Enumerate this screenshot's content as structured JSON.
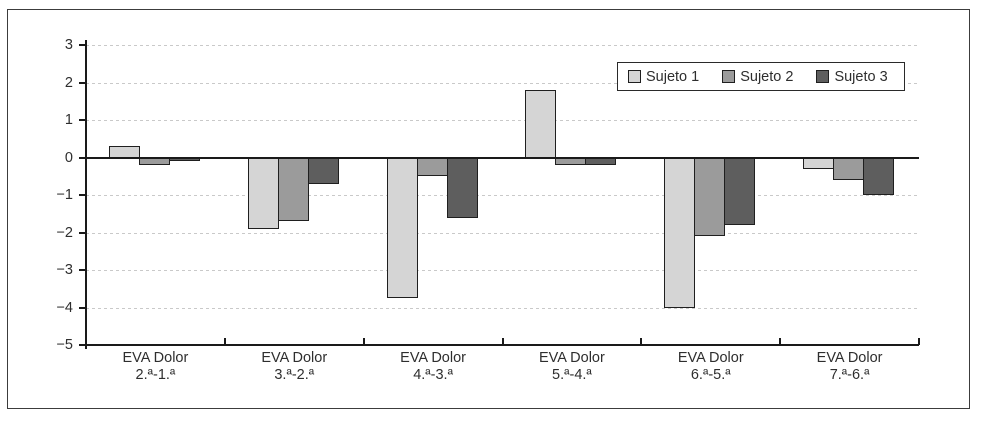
{
  "figure": {
    "background": "#ffffff",
    "frame_border_color": "#3c3c3c"
  },
  "chart_data": {
    "type": "bar",
    "title": "",
    "xlabel": "",
    "ylabel": "",
    "categories": [
      "EVA Dolor\n2.ª-1.ª",
      "EVA Dolor\n3.ª-2.ª",
      "EVA Dolor\n4.ª-3.ª",
      "EVA Dolor\n5.ª-4.ª",
      "EVA Dolor\n6.ª-5.ª",
      "EVA Dolor\n7.ª-6.ª"
    ],
    "series": [
      {
        "name": "Sujeto 1",
        "color": "#d5d5d5",
        "values": [
          0.3,
          -1.9,
          -3.75,
          1.8,
          -4.0,
          -0.3
        ]
      },
      {
        "name": "Sujeto 2",
        "color": "#9b9b9b",
        "values": [
          -0.2,
          -1.7,
          -0.5,
          -0.2,
          -2.1,
          -0.6
        ]
      },
      {
        "name": "Sujeto 3",
        "color": "#5e5e5e",
        "values": [
          -0.1,
          -0.7,
          -1.6,
          -0.2,
          -1.8,
          -1.0
        ]
      }
    ],
    "ylim": [
      -5,
      3
    ],
    "yticks": [
      {
        "value": 3,
        "label": "3"
      },
      {
        "value": 2,
        "label": "2"
      },
      {
        "value": 1,
        "label": "1"
      },
      {
        "value": 0,
        "label": "0"
      },
      {
        "value": -1,
        "label": "−1"
      },
      {
        "value": -2,
        "label": "−2"
      },
      {
        "value": -3,
        "label": "−3"
      },
      {
        "value": -4,
        "label": "−4"
      },
      {
        "value": -5,
        "label": "−5"
      }
    ],
    "grid": "horizontal-dashed",
    "legend_position": "top-right",
    "gridline_color": "#c9c9c9",
    "axis_color": "#1a1a1a",
    "bar_border_color": "#1f1f1f",
    "text_color": "#2e2e2e"
  }
}
